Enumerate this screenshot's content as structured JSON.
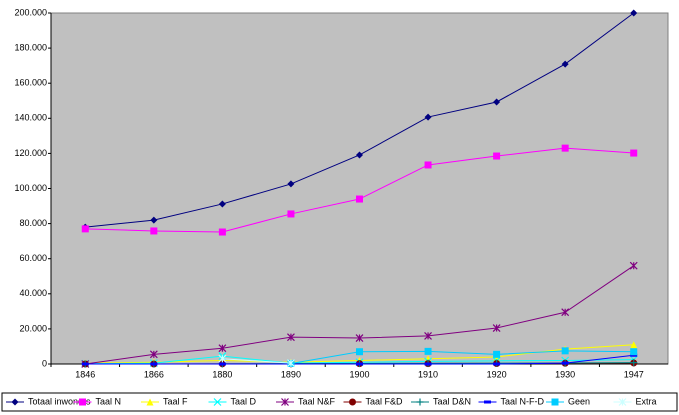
{
  "chart_data": {
    "type": "line",
    "categories": [
      "1846",
      "1866",
      "1880",
      "1890",
      "1900",
      "1910",
      "1920",
      "1930",
      "1947"
    ],
    "series": [
      {
        "name": "Totaal inwoners",
        "color": "#000080",
        "marker": "diamond",
        "values": [
          78000,
          82000,
          91200,
          102600,
          119100,
          140700,
          149300,
          170900,
          200000
        ]
      },
      {
        "name": "Taal N",
        "color": "#ff00ff",
        "marker": "square",
        "values": [
          77000,
          75800,
          75200,
          85500,
          94000,
          113400,
          118500,
          123000,
          120200
        ]
      },
      {
        "name": "Taal F",
        "color": "#ffff00",
        "marker": "triangle",
        "values": [
          500,
          1000,
          2000,
          1000,
          2000,
          3000,
          4000,
          8500,
          11000
        ]
      },
      {
        "name": "Taal D",
        "color": "#00ffff",
        "marker": "x",
        "values": [
          200,
          500,
          4500,
          500,
          1000,
          1500,
          1800,
          2000,
          2500
        ]
      },
      {
        "name": "Taal N&F",
        "color": "#800080",
        "marker": "star",
        "values": [
          0,
          5500,
          9000,
          15300,
          14800,
          16000,
          20500,
          29500,
          56000
        ]
      },
      {
        "name": "Taal F&D",
        "color": "#800000",
        "marker": "circle",
        "values": [
          0,
          0,
          100,
          100,
          200,
          200,
          300,
          400,
          600
        ]
      },
      {
        "name": "Taal D&N",
        "color": "#008080",
        "marker": "plus",
        "values": [
          0,
          0,
          100,
          200,
          300,
          400,
          500,
          600,
          800
        ]
      },
      {
        "name": "Taal N-F-D",
        "color": "#0000ff",
        "marker": "dash",
        "values": [
          0,
          0,
          0,
          0,
          0,
          0,
          0,
          500,
          5000
        ]
      },
      {
        "name": "Geen",
        "color": "#00ccff",
        "marker": "square",
        "values": [
          null,
          null,
          null,
          300,
          7000,
          7200,
          5500,
          7500,
          7000
        ]
      },
      {
        "name": "Extra",
        "color": "#ccffff",
        "marker": "star",
        "values": [
          null,
          null,
          3000,
          500,
          null,
          null,
          null,
          null,
          null
        ]
      }
    ],
    "ylim": [
      0,
      200000
    ],
    "yticks": [
      0,
      {
        "value": 20000,
        "label": "20.000"
      },
      {
        "value": 40000,
        "label": "40.000"
      },
      {
        "value": 60000,
        "label": "60.000"
      },
      {
        "value": 80000,
        "label": "80.000"
      },
      {
        "value": 100000,
        "label": "100.000"
      },
      {
        "value": 120000,
        "label": "120.000"
      },
      {
        "value": 140000,
        "label": "140.000"
      },
      {
        "value": 160000,
        "label": "160.000"
      },
      {
        "value": 180000,
        "label": "180.000"
      },
      {
        "value": 200000,
        "label": "200.000"
      }
    ],
    "grid": false,
    "legend": "bottom",
    "plot_background": "#c0c0c0"
  }
}
